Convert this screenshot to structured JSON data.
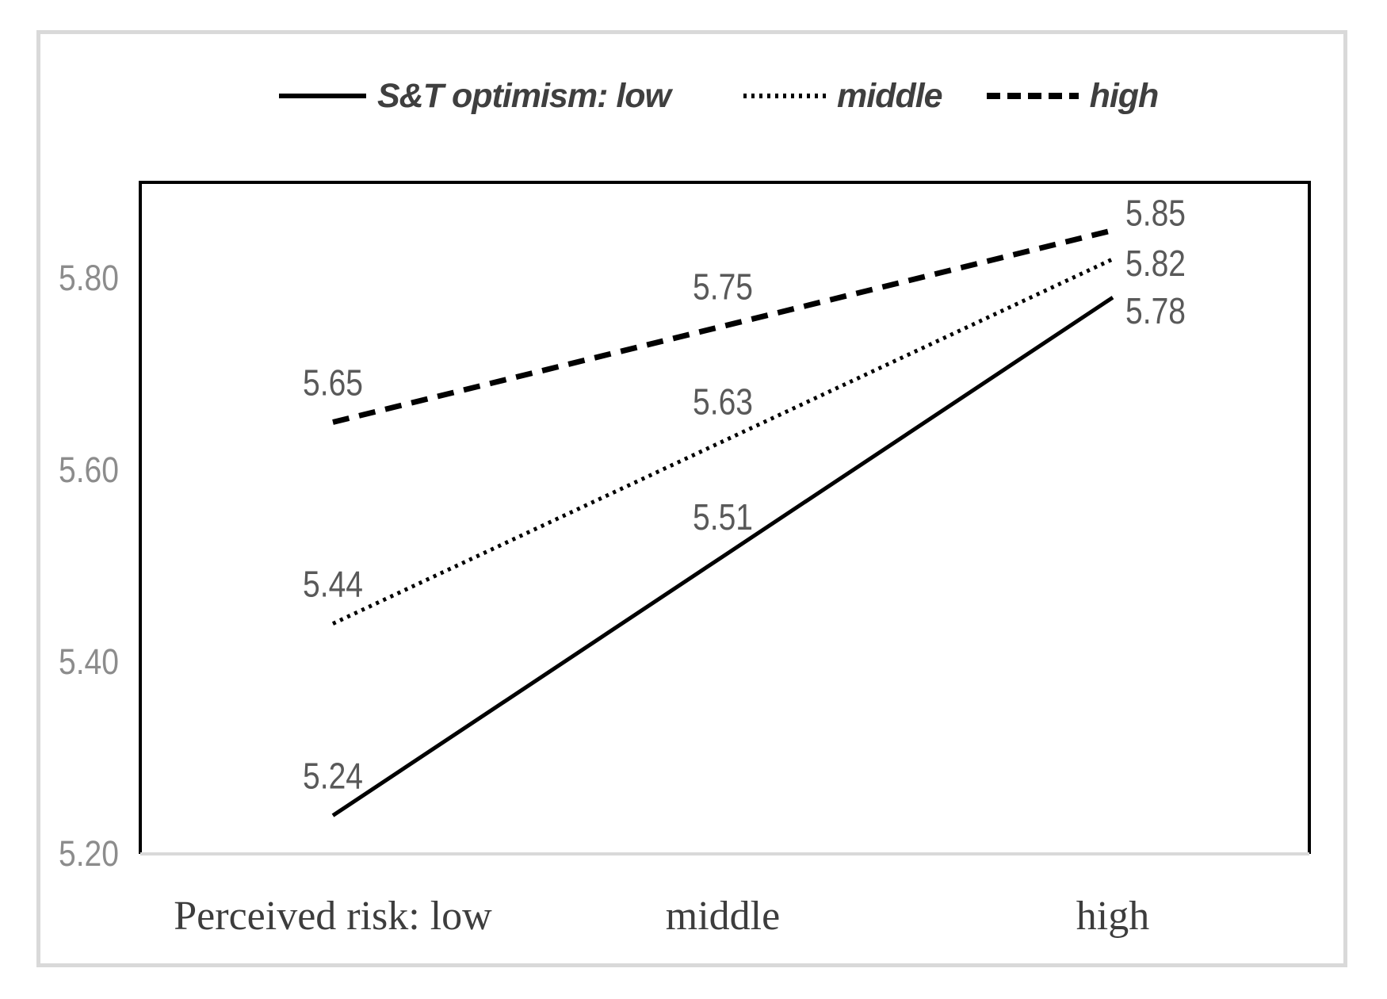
{
  "figure": {
    "legend": {
      "items": [
        {
          "label": "S&T optimism: low",
          "style": "solid"
        },
        {
          "label": "middle",
          "style": "dotted"
        },
        {
          "label": "high",
          "style": "dashed"
        }
      ]
    }
  },
  "chart_data": {
    "type": "line",
    "categories": [
      "Perceived risk: low",
      "middle",
      "high"
    ],
    "series": [
      {
        "name": "S&T optimism: low",
        "line_style": "solid",
        "values": [
          5.24,
          5.51,
          5.78
        ]
      },
      {
        "name": "middle",
        "line_style": "dotted",
        "values": [
          5.44,
          5.63,
          5.82
        ]
      },
      {
        "name": "high",
        "line_style": "dashed",
        "values": [
          5.65,
          5.75,
          5.85
        ]
      }
    ],
    "yticks": [
      5.2,
      5.4,
      5.6,
      5.8
    ],
    "ylim": [
      5.2,
      5.9
    ],
    "data_labels": true,
    "grid": false,
    "legend_position": "top",
    "colors": {
      "line": "#000000",
      "tick_label": "#8c8c8c",
      "data_label": "#595959",
      "category_label": "#3d3d3d",
      "legend_text": "#3f3f3f",
      "axis_bottom": "#d9d9d9",
      "plot_border": "#000000",
      "outer_border": "#d9d9d9"
    }
  }
}
